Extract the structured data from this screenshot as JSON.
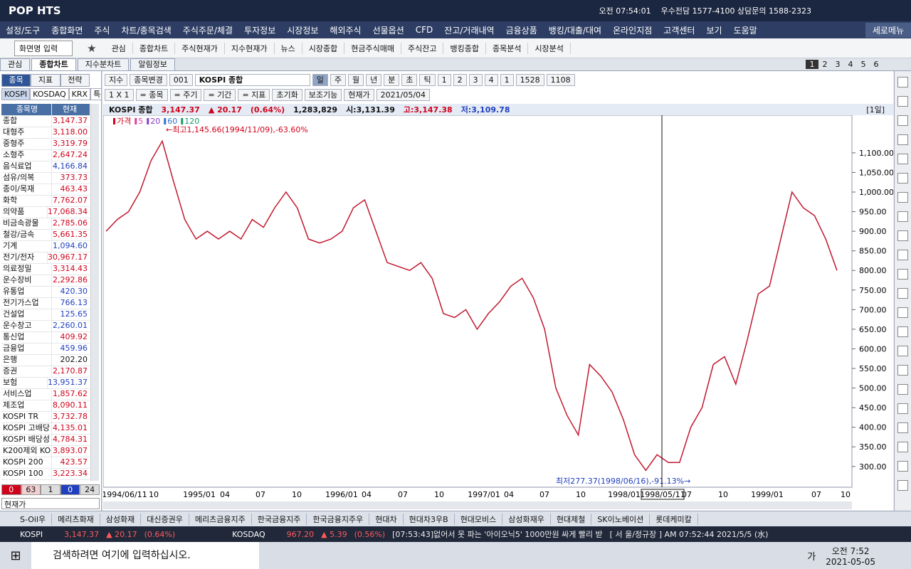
{
  "title_bar": {
    "logo": "POP HTS",
    "time": "오전 07:54:01",
    "contact": "우수전담 1577-4100 상담문의 1588-2323"
  },
  "menu": [
    "설정/도구",
    "종합화면",
    "주식",
    "차트/종목검색",
    "주식주문/체결",
    "투자정보",
    "시장정보",
    "해외주식",
    "선물옵션",
    "CFD",
    "잔고/거래내역",
    "금융상품",
    "뱅킹/대출/대여",
    "온라인지점",
    "고객센터",
    "보기",
    "도움말"
  ],
  "menu_right": "세로메뉴",
  "toolbar": {
    "screen_input": "화면명 입력",
    "items": [
      "관심",
      "종합차트",
      "주식현재가",
      "지수현재가",
      "뉴스",
      "시장종합",
      "현금주식매매",
      "주식잔고",
      "뱅킹종합",
      "종목분석",
      "시장분석"
    ]
  },
  "tabs": [
    "관심",
    "종합차트",
    "지수분차트",
    "알림정보"
  ],
  "page_numbers": [
    "1",
    "2",
    "3",
    "4",
    "5",
    "6"
  ],
  "left_panel": {
    "tabs": [
      "종목",
      "지표",
      "전략"
    ],
    "markets": [
      "KOSPI",
      "KOSDAQ",
      "KRX",
      "특수"
    ],
    "headers": [
      "종목명",
      "현재"
    ],
    "rows": [
      {
        "name": "종합",
        "value": "3,147.37",
        "color": "#d0021b"
      },
      {
        "name": "대형주",
        "value": "3,118.00",
        "color": "#d0021b"
      },
      {
        "name": "중형주",
        "value": "3,319.79",
        "color": "#d0021b"
      },
      {
        "name": "소형주",
        "value": "2,647.24",
        "color": "#d0021b"
      },
      {
        "name": "음식료업",
        "value": "4,166.84",
        "color": "#1f3fbf"
      },
      {
        "name": "섬유/의복",
        "value": "373.73",
        "color": "#d0021b"
      },
      {
        "name": "종이/목재",
        "value": "463.43",
        "color": "#d0021b"
      },
      {
        "name": "화학",
        "value": "7,762.07",
        "color": "#d0021b"
      },
      {
        "name": "의약품",
        "value": "17,068.34",
        "color": "#d0021b"
      },
      {
        "name": "비금속광물",
        "value": "2,785.06",
        "color": "#d0021b"
      },
      {
        "name": "철강/금속",
        "value": "5,661.35",
        "color": "#d0021b"
      },
      {
        "name": "기계",
        "value": "1,094.60",
        "color": "#1f3fbf"
      },
      {
        "name": "전기/전자",
        "value": "30,967.17",
        "color": "#d0021b"
      },
      {
        "name": "의료정밀",
        "value": "3,314.43",
        "color": "#d0021b"
      },
      {
        "name": "운수장비",
        "value": "2,292.86",
        "color": "#d0021b"
      },
      {
        "name": "유통업",
        "value": "420.30",
        "color": "#1f3fbf"
      },
      {
        "name": "전기가스업",
        "value": "766.13",
        "color": "#1f3fbf"
      },
      {
        "name": "건설업",
        "value": "125.65",
        "color": "#1f3fbf"
      },
      {
        "name": "운수창고",
        "value": "2,260.01",
        "color": "#1f3fbf"
      },
      {
        "name": "통신업",
        "value": "409.92",
        "color": "#d0021b"
      },
      {
        "name": "금융업",
        "value": "459.96",
        "color": "#1f3fbf"
      },
      {
        "name": "은행",
        "value": "202.20",
        "color": "#111111"
      },
      {
        "name": "증권",
        "value": "2,170.87",
        "color": "#d0021b"
      },
      {
        "name": "보험",
        "value": "13,951.37",
        "color": "#1f3fbf"
      },
      {
        "name": "서비스업",
        "value": "1,857.62",
        "color": "#d0021b"
      },
      {
        "name": "제조업",
        "value": "8,090.11",
        "color": "#d0021b"
      },
      {
        "name": "KOSPI TR",
        "value": "3,732.78",
        "color": "#d0021b"
      },
      {
        "name": "KOSPI 고배당",
        "value": "4,135.01",
        "color": "#d0021b"
      },
      {
        "name": "KOSPI 배당성",
        "value": "4,784.31",
        "color": "#d0021b"
      },
      {
        "name": "K200제외 KO",
        "value": "3,893.07",
        "color": "#d0021b"
      },
      {
        "name": "KOSPI 200",
        "value": "423.57",
        "color": "#d0021b"
      },
      {
        "name": "KOSPI 100",
        "value": "3,223.34",
        "color": "#d0021b"
      }
    ],
    "counts": [
      "0",
      "63",
      "1",
      "0",
      "24"
    ],
    "sort": "현재가"
  },
  "chart_controls": {
    "row1": [
      "지수",
      "종목변경",
      "001",
      "KOSPI 종합",
      "일",
      "주",
      "월",
      "년",
      "분",
      "초",
      "틱",
      "1",
      "2",
      "3",
      "4",
      "1",
      "1528",
      "1108"
    ],
    "row2": [
      "1 X 1",
      "= 종목",
      "= 주기",
      "= 기간",
      "= 지표",
      "초기화",
      "보조기능",
      "현재가",
      "2021/05/04"
    ]
  },
  "chart_info": {
    "name": "KOSPI 종합",
    "price": "3,147.37",
    "change": "▲ 20.17",
    "rate": "(0.64%)",
    "volume": "1,283,829",
    "open": "시:3,131.39",
    "high": "고:3,147.38",
    "low": "저:3,109.78",
    "period": "[1일]"
  },
  "chart_data": {
    "type": "line",
    "legend": [
      {
        "label": "가격",
        "color": "#d0021b"
      },
      {
        "label": "5",
        "color": "#e040a0"
      },
      {
        "label": "20",
        "color": "#8a3cc8"
      },
      {
        "label": "60",
        "color": "#2f6fd0"
      },
      {
        "label": "120",
        "color": "#1a9a6a"
      }
    ],
    "x_labels": [
      "1994/06/11",
      "10",
      "1995/01",
      "04",
      "07",
      "10",
      "1996/01",
      "04",
      "07",
      "10",
      "1997/01",
      "04",
      "07",
      "10",
      "1998/01",
      "07",
      "10",
      "1999/01",
      "07",
      "10"
    ],
    "cursor_label": "1998/05/11",
    "series": [
      {
        "color": "#c0182e",
        "values": [
          900,
          930,
          950,
          1000,
          1080,
          1130,
          1027,
          930,
          880,
          900,
          880,
          900,
          880,
          930,
          910,
          960,
          1000,
          960,
          880,
          870,
          880,
          900,
          960,
          980,
          900,
          820,
          810,
          800,
          820,
          780,
          690,
          680,
          700,
          650,
          690,
          720,
          760,
          780,
          730,
          650,
          500,
          430,
          380,
          560,
          530,
          490,
          420,
          330,
          290,
          330,
          310,
          310,
          400,
          450,
          560,
          580,
          510,
          620,
          740,
          760,
          880,
          1000,
          960,
          940,
          880,
          800
        ]
      }
    ],
    "ylim": [
      247,
      1196
    ],
    "yticks": [
      {
        "value": 300,
        "label": "300.00"
      },
      {
        "value": 350,
        "label": "350.00"
      },
      {
        "value": 400,
        "label": "400.00"
      },
      {
        "value": 450,
        "label": "450.00"
      },
      {
        "value": 500,
        "label": "500.00"
      },
      {
        "value": 550,
        "label": "550.00"
      },
      {
        "value": 600,
        "label": "600.00"
      },
      {
        "value": 650,
        "label": "650.00"
      },
      {
        "value": 700,
        "label": "700.00"
      },
      {
        "value": 750,
        "label": "750.00"
      },
      {
        "value": 800,
        "label": "800.00"
      },
      {
        "value": 850,
        "label": "850.00"
      },
      {
        "value": 900,
        "label": "900.00"
      },
      {
        "value": 950,
        "label": "950.00"
      },
      {
        "value": 1000,
        "label": "1,000.00"
      },
      {
        "value": 1050,
        "label": "1,050.00"
      },
      {
        "value": 1100,
        "label": "1,100.00"
      }
    ],
    "annotations": {
      "high": "←최고1,145.66(1994/11/09),-63.60%",
      "low": "최저277.37(1998/06/16),-91.13%→"
    }
  },
  "stock_tabs": [
    "S-Oil우",
    "메리츠화재",
    "삼성화재",
    "대신증권우",
    "메리츠금융지주",
    "한국금융지주",
    "한국금융지주우",
    "현대차",
    "현대차3우B",
    "현대모비스",
    "삼성화재우",
    "현대제철",
    "SK이노베이션",
    "롯데케미칼"
  ],
  "ticker": {
    "kospi_label": "KOSPI",
    "kospi_value": "3,147.37",
    "kospi_change": "▲ 20.17",
    "kospi_rate": "(0.64%)",
    "kosdaq_label": "KOSDAQ",
    "kosdaq_value": "967.20",
    "kosdaq_change": "▲ 5.39",
    "kosdaq_rate": "(0.56%)",
    "news": "[07:53:43]없어서 못 파는 '아이오닉5' 1000만원 싸게 빨리 받",
    "session": "[ 서  울/정규장 ] AM 07:52:44  2021/5/5 (水)"
  },
  "taskbar": {
    "search": "검색하려면 여기에 입력하십시오.",
    "lang": "가",
    "time": "오전 7:52",
    "date": "2021-05-05"
  }
}
